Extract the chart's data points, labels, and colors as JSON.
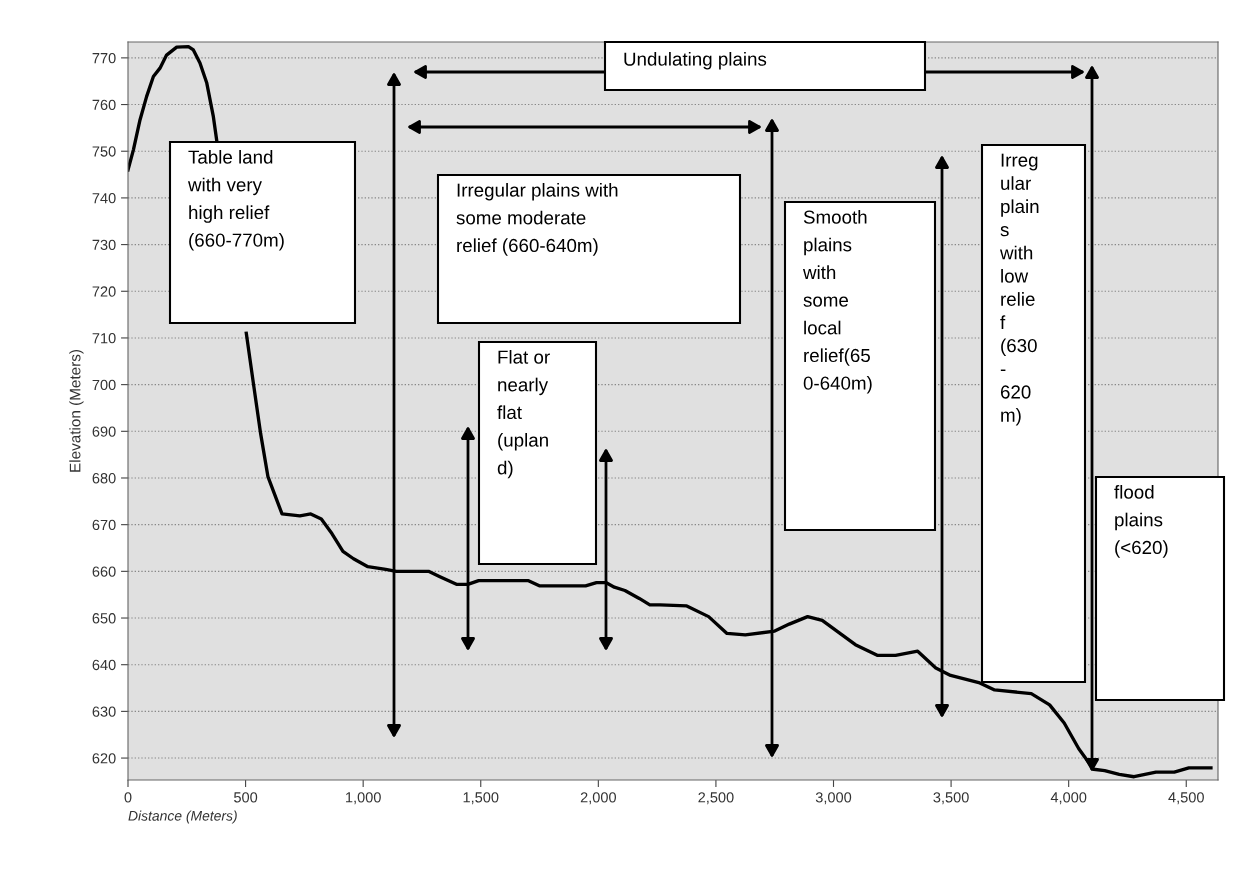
{
  "chart_data": {
    "type": "line",
    "xlabel": "Distance (Meters)",
    "ylabel": "Elevation (Meters)",
    "series": [
      {
        "color": "#000000",
        "x": [
          0,
          23,
          51,
          79,
          108,
          136,
          164,
          207,
          257,
          278,
          306,
          335,
          363,
          377,
          420,
          460,
          503,
          534,
          564,
          595,
          655,
          731,
          777,
          822,
          867,
          914,
          959,
          1020,
          1096,
          1141,
          1278,
          1324,
          1399,
          1445,
          1491,
          1703,
          1749,
          1946,
          1992,
          2032,
          2068,
          2113,
          2174,
          2219,
          2262,
          2376,
          2469,
          2547,
          2625,
          2750,
          2812,
          2890,
          2952,
          3093,
          3186,
          3264,
          3358,
          3435,
          3498,
          3622,
          3685,
          3841,
          3919,
          3981,
          4043,
          4106,
          4153,
          4215,
          4278,
          4371,
          4449,
          4511,
          4605
        ],
        "values": [
          746,
          750.3,
          756.7,
          761.7,
          766,
          767.8,
          770.6,
          772.3,
          772.4,
          771.7,
          768.9,
          764.6,
          757.4,
          752.4,
          null,
          null,
          711,
          700,
          689.5,
          680.3,
          672.3,
          671.9,
          672.3,
          671.2,
          668.1,
          664.3,
          662.7,
          661,
          660.4,
          660,
          660,
          658.9,
          657.2,
          657.2,
          658,
          658,
          656.9,
          656.9,
          657.6,
          657.6,
          656.6,
          655.9,
          654.2,
          652.8,
          652.8,
          652.6,
          650.3,
          646.7,
          646.4,
          647.2,
          648.7,
          650.3,
          649.5,
          644.3,
          642,
          642,
          642.9,
          639.3,
          637.7,
          636.1,
          634.6,
          633.8,
          631.4,
          627.5,
          622,
          617.6,
          617.3,
          616.5,
          616,
          617,
          617,
          617.9,
          617.9
        ]
      }
    ],
    "xlim": [
      0,
      4635
    ],
    "ylim": [
      615.3,
      773.4
    ],
    "xticks": [
      0,
      500,
      {
        "value": 1000,
        "label": "1,000"
      },
      {
        "value": 1500,
        "label": "1,500"
      },
      {
        "value": 2000,
        "label": "2,000"
      },
      {
        "value": 2500,
        "label": "2,500"
      },
      {
        "value": 3000,
        "label": "3,000"
      },
      {
        "value": 3500,
        "label": "3,500"
      },
      {
        "value": 4000,
        "label": "4,000"
      },
      {
        "value": 4500,
        "label": "4,500"
      }
    ],
    "yticks": [
      620,
      630,
      640,
      650,
      660,
      670,
      680,
      690,
      700,
      710,
      720,
      730,
      740,
      750,
      760,
      770
    ],
    "grid": "y",
    "legend": false,
    "marker": "none",
    "line_style": "solid",
    "annotations": [
      "Undulating plains",
      "Table land\nwith very\nhigh relief\n(660-770m)",
      "Irregular plains with\nsome moderate\nrelief (660-640m)",
      "Flat or\nnearly\nflat\n(uplan\nd)",
      "Smooth\nplains\nwith\nsome\nlocal\nrelief(65\n0-640m)",
      "Irreg\nular\nplain\ns\nwith\nlow\nrelie\nf\n(630\n-\n620\nm)",
      "flood\nplains\n(<620)"
    ]
  }
}
